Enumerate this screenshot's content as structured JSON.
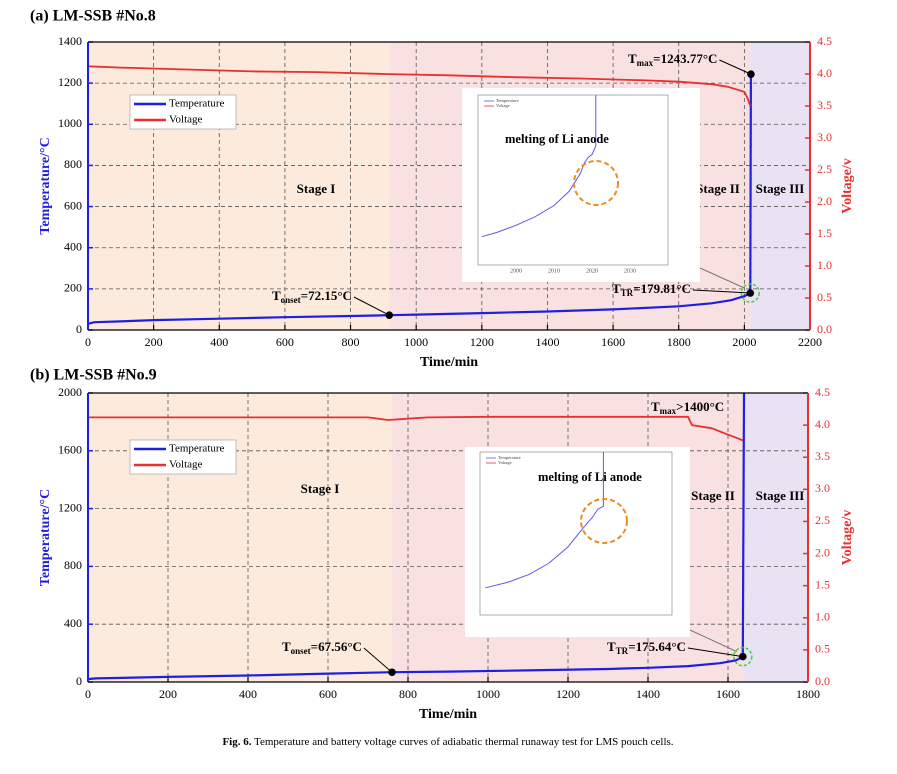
{
  "chart_data": [
    {
      "type": "line",
      "title": "(a) LM-SSB #No.8",
      "xlabel": "Time/min",
      "ylabel": "Temperature/°C",
      "y2label": "Voltage/v",
      "xlim": [
        0,
        2200
      ],
      "xticks": [
        0,
        200,
        400,
        600,
        800,
        1000,
        1200,
        1400,
        1600,
        1800,
        2000,
        2200
      ],
      "ylim": [
        0,
        1400
      ],
      "yticks": [
        0,
        200,
        400,
        600,
        800,
        1000,
        1200,
        1400
      ],
      "y2lim": [
        0,
        4.5
      ],
      "y2ticks": [
        {
          "value": 0,
          "label": "0.0"
        },
        0.5,
        {
          "value": 1,
          "label": "1.0"
        },
        1.5,
        {
          "value": 2,
          "label": "2.0"
        },
        2.5,
        {
          "value": 3,
          "label": "3.0"
        },
        3.5,
        {
          "value": 4,
          "label": "4.0"
        },
        4.5
      ],
      "grid": true,
      "regions": [
        {
          "label": "Stage I",
          "start": 0,
          "end": 918,
          "color": "#fcebdc"
        },
        {
          "label": "Stage II",
          "start": 918,
          "end": 2018,
          "color": "#fae1e1"
        },
        {
          "label": "Stage III",
          "start": 2018,
          "end": 2200,
          "color": "#e8e2f2"
        }
      ],
      "series": [
        {
          "name": "Temperature",
          "color": "#1f1fe0",
          "x": [
            0,
            20,
            100,
            200,
            400,
            600,
            800,
            918,
            1000,
            1200,
            1400,
            1600,
            1800,
            1900,
            1960,
            2000,
            2018,
            2020
          ],
          "values": [
            30,
            38,
            42,
            48,
            55,
            62,
            68,
            72.15,
            75,
            82,
            90,
            100,
            115,
            130,
            145,
            165,
            179.81,
            1243.77
          ]
        },
        {
          "name": "Voltage",
          "color": "#e8302e",
          "axis": "y2",
          "x": [
            0,
            100,
            300,
            500,
            700,
            900,
            1100,
            1300,
            1500,
            1700,
            1800,
            1900,
            1950,
            2000,
            2010,
            2018
          ],
          "values": [
            4.12,
            4.1,
            4.07,
            4.04,
            4.03,
            4.0,
            3.98,
            3.95,
            3.93,
            3.9,
            3.88,
            3.84,
            3.8,
            3.72,
            3.62,
            3.5
          ]
        }
      ],
      "annotations": [
        {
          "parts": [
            "T",
            "onset",
            "=72.15°C"
          ],
          "x": 918,
          "y": 72.15
        },
        {
          "parts": [
            "T",
            "TR",
            "=179.81°C"
          ],
          "x": 2018,
          "y": 179.81
        },
        {
          "parts": [
            "T",
            "max",
            "=1243.77°C"
          ],
          "x": 2020,
          "y": 1243.77
        }
      ],
      "inset": {
        "label": "melting of Li anode",
        "legend": [
          "Temperature",
          "Voltage"
        ],
        "xlim": [
          1990,
          2040
        ],
        "xticks": [
          2000,
          2010,
          2020,
          2030
        ],
        "ylim": [
          100,
          220
        ],
        "x": [
          1991,
          1995,
          2000,
          2005,
          2010,
          2014,
          2017,
          2018,
          2019,
          2020,
          2020.5,
          2021,
          2021
        ],
        "values": [
          120,
          123,
          128,
          134,
          142,
          152,
          165,
          172,
          176,
          178,
          181,
          184,
          220
        ],
        "color": "#5a5ae8"
      }
    },
    {
      "type": "line",
      "title": "(b) LM-SSB #No.9",
      "xlabel": "Time/min",
      "ylabel": "Temperature/°C",
      "y2label": "Voltage/v",
      "xlim": [
        0,
        1800
      ],
      "xticks": [
        0,
        200,
        400,
        600,
        800,
        1000,
        1200,
        1400,
        1600,
        1800
      ],
      "ylim": [
        0,
        2000
      ],
      "yticks": [
        0,
        400,
        800,
        1200,
        1600,
        2000
      ],
      "y2lim": [
        0,
        4.5
      ],
      "y2ticks": [
        {
          "value": 0,
          "label": "0.0"
        },
        0.5,
        {
          "value": 1,
          "label": "1.0"
        },
        1.5,
        {
          "value": 2,
          "label": "2.0"
        },
        2.5,
        {
          "value": 3,
          "label": "3.0"
        },
        3.5,
        {
          "value": 4,
          "label": "4.0"
        },
        4.5
      ],
      "grid": true,
      "regions": [
        {
          "label": "Stage I",
          "start": 0,
          "end": 760,
          "color": "#fcebdc"
        },
        {
          "label": "Stage II",
          "start": 760,
          "end": 1637,
          "color": "#fae1e1"
        },
        {
          "label": "Stage III",
          "start": 1637,
          "end": 1800,
          "color": "#e8e2f2"
        }
      ],
      "series": [
        {
          "name": "Temperature",
          "color": "#1f1fe0",
          "x": [
            0,
            20,
            200,
            400,
            600,
            760,
            900,
            1100,
            1300,
            1400,
            1500,
            1580,
            1620,
            1637,
            1640
          ],
          "values": [
            20,
            25,
            35,
            45,
            58,
            67.56,
            72,
            80,
            90,
            98,
            110,
            130,
            150,
            175.64,
            2000
          ]
        },
        {
          "name": "Voltage",
          "color": "#e8302e",
          "axis": "y2",
          "x": [
            0,
            700,
            750,
            800,
            850,
            1000,
            1200,
            1400,
            1500,
            1510,
            1560,
            1600,
            1630,
            1637
          ],
          "values": [
            4.12,
            4.12,
            4.08,
            4.1,
            4.12,
            4.13,
            4.13,
            4.13,
            4.13,
            4.0,
            3.95,
            3.85,
            3.78,
            3.76
          ]
        }
      ],
      "annotations": [
        {
          "parts": [
            "T",
            "onset",
            "=67.56°C"
          ],
          "x": 760,
          "y": 67.56
        },
        {
          "parts": [
            "T",
            "TR",
            "=175.64°C"
          ],
          "x": 1637,
          "y": 175.64
        },
        {
          "parts": [
            "T",
            "max",
            ">1400°C"
          ]
        }
      ],
      "inset": {
        "label": "melting of Li anode",
        "legend": [
          "Temperature",
          "Voltage"
        ],
        "xlim": [
          1580,
          1650
        ],
        "ylim": [
          100,
          220
        ],
        "x": [
          1582,
          1590,
          1598,
          1605,
          1612,
          1618,
          1621,
          1622,
          1623,
          1625,
          1625
        ],
        "values": [
          120,
          124,
          130,
          138,
          150,
          165,
          172,
          175,
          178,
          180,
          220
        ],
        "color": "#5a5ae8"
      }
    }
  ],
  "caption": {
    "label": "Fig. 6.",
    "text": " Temperature and battery voltage curves of adiabatic thermal runaway test for LMS pouch cells."
  }
}
